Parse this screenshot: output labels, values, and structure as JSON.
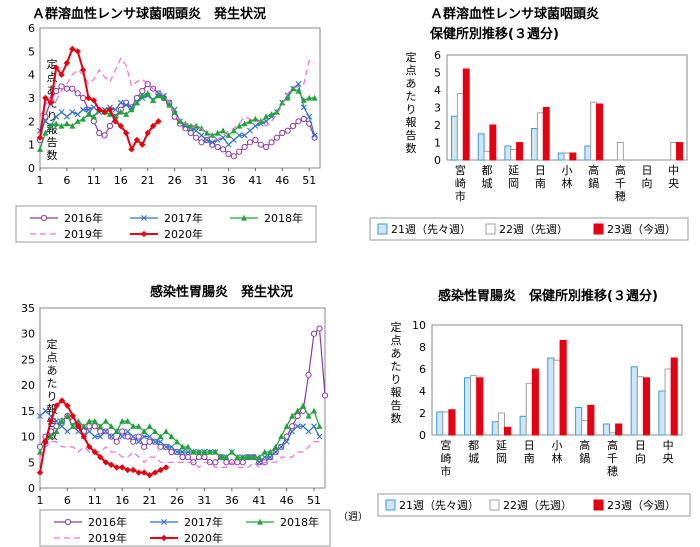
{
  "colors": {
    "y2016": "#8e3a9e",
    "y2017": "#2f74c0",
    "y2018": "#22a23a",
    "y2019": "#ec6fd6",
    "y2020": "#e60012",
    "w21": "#3d9ad6",
    "w22": "#a0a0a0",
    "w23": "#e60012"
  },
  "chart_data": [
    {
      "id": "strep_trend",
      "type": "line",
      "title": "Ａ群溶血性レンサ球菌咽頭炎　発生状況",
      "ylabel": "定点あたり報告数",
      "xlabel": "",
      "ylim": [
        0,
        6
      ],
      "xlim": [
        1,
        53
      ],
      "yticks": [
        0,
        1,
        2,
        3,
        4,
        5,
        6
      ],
      "xticks": [
        1,
        6,
        11,
        16,
        21,
        26,
        31,
        36,
        41,
        46,
        51
      ],
      "grid": false,
      "legend": "bottom",
      "series": [
        {
          "name": "2016年",
          "key": "y2016",
          "values": [
            1.2,
            2.2,
            2.9,
            3.3,
            3.5,
            3.4,
            3.4,
            3.2,
            3.0,
            2.5,
            2.0,
            1.5,
            1.4,
            1.8,
            2.2,
            2.5,
            2.8,
            2.6,
            3.0,
            3.3,
            3.6,
            3.4,
            3.2,
            3.0,
            2.8,
            2.2,
            1.9,
            1.7,
            1.5,
            1.3,
            1.1,
            1.2,
            1.0,
            0.9,
            0.8,
            0.6,
            0.5,
            0.7,
            0.9,
            1.1,
            1.2,
            1.0,
            0.9,
            1.1,
            1.3,
            1.5,
            1.6,
            1.8,
            2.0,
            2.1,
            1.9,
            1.3
          ]
        },
        {
          "name": "2017年",
          "key": "y2017",
          "values": [
            1.6,
            2.0,
            1.8,
            2.2,
            2.4,
            2.2,
            2.4,
            2.3,
            2.5,
            2.5,
            2.6,
            2.4,
            2.5,
            2.6,
            2.5,
            2.8,
            2.7,
            2.6,
            2.8,
            3.0,
            3.1,
            2.9,
            3.2,
            3.1,
            2.8,
            2.5,
            2.0,
            1.8,
            1.7,
            1.6,
            1.4,
            1.2,
            1.1,
            1.2,
            1.3,
            1.0,
            1.2,
            1.4,
            1.4,
            1.6,
            1.8,
            1.9,
            2.0,
            2.2,
            2.4,
            2.8,
            3.1,
            3.4,
            3.6,
            2.6,
            2.2,
            1.4
          ]
        },
        {
          "name": "2018年",
          "key": "y2018",
          "values": [
            0.8,
            1.5,
            1.8,
            1.9,
            1.8,
            1.9,
            1.8,
            2.0,
            2.1,
            2.3,
            2.2,
            2.5,
            2.4,
            2.3,
            2.2,
            2.4,
            2.3,
            2.5,
            2.8,
            3.1,
            3.2,
            2.9,
            3.1,
            3.0,
            2.7,
            2.4,
            2.0,
            1.9,
            1.8,
            1.8,
            1.7,
            1.5,
            1.4,
            1.5,
            1.6,
            1.4,
            1.6,
            1.8,
            1.9,
            2.0,
            2.1,
            2.0,
            2.2,
            2.3,
            2.4,
            2.8,
            3.0,
            3.4,
            3.3,
            2.9,
            3.0,
            3.0
          ]
        },
        {
          "name": "2019年",
          "key": "y2019",
          "values": [
            2.2,
            2.7,
            3.1,
            2.9,
            3.3,
            3.6,
            4.0,
            4.2,
            4.0,
            3.6,
            3.8,
            4.2,
            3.9,
            3.7,
            4.2,
            4.7,
            4.4,
            3.5,
            3.7,
            3.8,
            3.6,
            3.4,
            3.3,
            3.1,
            2.8,
            2.3,
            2.0,
            1.9,
            1.7,
            1.8,
            1.7,
            1.4,
            1.3,
            1.2,
            1.4,
            1.6,
            1.7,
            1.9,
            2.2,
            2.1,
            2.0,
            2.0,
            1.8,
            2.0,
            2.3,
            2.7,
            3.2,
            3.4,
            3.5,
            3.6,
            4.6,
            4.5
          ]
        },
        {
          "name": "2020年",
          "key": "y2020",
          "values": [
            1.3,
            3.0,
            2.8,
            4.3,
            4.0,
            4.5,
            5.1,
            5.0,
            4.2,
            3.0,
            2.9,
            2.5,
            2.4,
            2.5,
            2.0,
            1.8,
            1.5,
            0.8,
            1.2,
            1.0,
            1.5,
            1.8,
            2.0
          ]
        }
      ]
    },
    {
      "id": "strep_bar",
      "type": "bar",
      "title_lines": [
        "Ａ群溶血性レンサ球菌咽頭炎",
        "保健所別推移(３週分)"
      ],
      "ylabel": "定点あたり報告数",
      "ylim": [
        0,
        6
      ],
      "yticks": [
        0,
        1,
        2,
        3,
        4,
        5,
        6
      ],
      "grid": false,
      "legend": "bottom",
      "categories": [
        "宮崎市",
        "都城",
        "延岡",
        "日南",
        "小林",
        "高鍋",
        "高千穂",
        "日向",
        "中央"
      ],
      "series": [
        {
          "name": "21週（先々週）",
          "key": "w21",
          "values": [
            2.5,
            1.5,
            0.8,
            1.8,
            0.4,
            0.8,
            0,
            0,
            0
          ]
        },
        {
          "name": "22週（先週）",
          "key": "w22",
          "values": [
            3.8,
            0.5,
            0.6,
            2.7,
            0.4,
            3.3,
            1.0,
            0,
            1.0
          ]
        },
        {
          "name": "23週（今週）",
          "key": "w23",
          "values": [
            5.2,
            2.0,
            1.0,
            3.0,
            0.4,
            3.2,
            0,
            0,
            1.0
          ]
        }
      ]
    },
    {
      "id": "gastro_trend",
      "type": "line",
      "title": "感染性胃腸炎　発生状況",
      "ylabel": "定点あたり報告数",
      "xlabel": "（週）",
      "ylim": [
        0,
        35
      ],
      "xlim": [
        1,
        53
      ],
      "yticks": [
        0,
        5,
        10,
        15,
        20,
        25,
        30,
        35
      ],
      "xticks": [
        1,
        6,
        11,
        16,
        21,
        26,
        31,
        36,
        41,
        46,
        51
      ],
      "grid": false,
      "legend": "bottom",
      "series": [
        {
          "name": "2016年",
          "key": "y2016",
          "values": [
            8,
            10,
            11,
            12,
            13,
            14,
            13,
            12,
            11,
            12,
            12,
            11,
            11,
            10,
            9,
            11,
            10,
            9,
            10,
            8,
            9,
            9,
            8,
            8,
            7,
            7,
            6,
            6,
            5,
            6,
            6,
            5,
            5,
            6,
            5,
            5,
            5,
            5,
            6,
            6,
            5,
            5,
            6,
            7,
            8,
            10,
            12,
            14,
            15,
            22,
            30,
            31,
            18
          ]
        },
        {
          "name": "2017年",
          "key": "y2017",
          "values": [
            14,
            15,
            14,
            13,
            12,
            11,
            12,
            11,
            10,
            11,
            10,
            10,
            11,
            10,
            11,
            10,
            11,
            10,
            9,
            10,
            10,
            9,
            9,
            8,
            8,
            7,
            7,
            7,
            7,
            7,
            7,
            7,
            7,
            6,
            6,
            7,
            6,
            6,
            6,
            6,
            5,
            6,
            6,
            7,
            8,
            9,
            11,
            12,
            12,
            11,
            12,
            10
          ]
        },
        {
          "name": "2018年",
          "key": "y2018",
          "values": [
            7,
            9,
            10,
            11,
            13,
            14,
            12,
            13,
            12,
            13,
            13,
            12,
            13,
            12,
            11,
            13,
            13,
            12,
            12,
            11,
            12,
            11,
            10,
            11,
            10,
            9,
            8,
            8,
            7,
            7,
            7,
            7,
            7,
            6,
            6,
            7,
            6,
            6,
            6,
            6,
            6,
            7,
            7,
            8,
            10,
            12,
            14,
            15,
            16,
            14,
            15,
            12
          ]
        },
        {
          "name": "2019年",
          "key": "y2019",
          "values": [
            6,
            8,
            9,
            9,
            8,
            8,
            8,
            7,
            8,
            7,
            7,
            7,
            8,
            7,
            7,
            6,
            6,
            7,
            6,
            5,
            6,
            6,
            5,
            5,
            5,
            5,
            5,
            5,
            5,
            4,
            5,
            5,
            4,
            4,
            4,
            5,
            4,
            4,
            4,
            5,
            4,
            5,
            5,
            5,
            6,
            6,
            6,
            7,
            7,
            8,
            9,
            9
          ]
        },
        {
          "name": "2020年",
          "key": "y2020",
          "values": [
            3,
            9,
            13,
            16,
            17,
            16,
            14,
            12,
            10,
            8,
            7,
            6,
            5,
            4.5,
            4,
            4,
            3.5,
            3.5,
            3,
            3,
            2.5,
            3,
            3.5,
            4
          ]
        }
      ]
    },
    {
      "id": "gastro_bar",
      "type": "bar",
      "title_lines": [
        "感染性胃腸炎　保健所別推移(３週分)"
      ],
      "ylabel": "定点あたり報告数",
      "ylim": [
        0,
        10
      ],
      "yticks": [
        0,
        2,
        4,
        6,
        8,
        10
      ],
      "grid": false,
      "legend": "bottom",
      "categories": [
        "宮崎市",
        "都城",
        "延岡",
        "日南",
        "小林",
        "高鍋",
        "高千穂",
        "日向",
        "中央"
      ],
      "series": [
        {
          "name": "21週（先々週）",
          "key": "w21",
          "values": [
            2.1,
            5.2,
            1.2,
            1.7,
            7.0,
            2.5,
            1.0,
            6.2,
            4.0
          ]
        },
        {
          "name": "22週（先週）",
          "key": "w22",
          "values": [
            2.1,
            5.4,
            2.0,
            4.7,
            6.8,
            1.3,
            0.2,
            5.3,
            6.0
          ]
        },
        {
          "name": "23週（今週）",
          "key": "w23",
          "values": [
            2.3,
            5.2,
            0.7,
            6.0,
            8.6,
            2.7,
            1.0,
            5.2,
            7.0
          ]
        }
      ]
    }
  ]
}
